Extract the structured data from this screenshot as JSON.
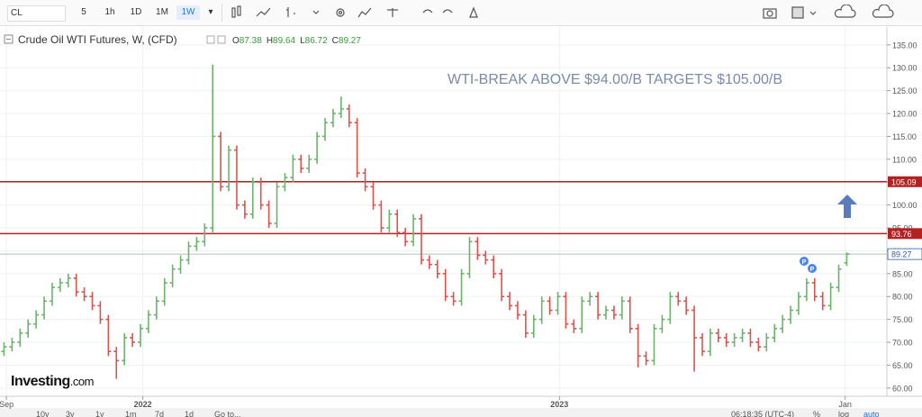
{
  "toolbar": {
    "symbol": "CL",
    "intervals": [
      "5",
      "1h",
      "1D",
      "1M",
      "1W"
    ],
    "active_interval": 4
  },
  "bottom_bar": {
    "ranges": [
      "10y",
      "3y",
      "1y",
      "1m",
      "7d",
      "1d"
    ],
    "goto": "Go to...",
    "clock": "06:18:35 (UTC-4)",
    "options": [
      "%",
      "log",
      "auto"
    ]
  },
  "watermark": {
    "brand": "Investing",
    "suffix": ".com"
  },
  "chart_data": {
    "type": "ohlc",
    "title": "Crude Oil WTI Futures, W, (CFD)",
    "annotation": "WTI-BREAK ABOVE $94.00/B TARGETS $105.00/B",
    "ohlc_labels": [
      "O",
      "H",
      "L",
      "C"
    ],
    "up_color": "#6db36d",
    "down_color": "#d9534f",
    "series": {
      "open": [
        68,
        69,
        70,
        72,
        74,
        76,
        79,
        82,
        83,
        84,
        81,
        80,
        78,
        75,
        68,
        66,
        71,
        70,
        73,
        76,
        79,
        83,
        86,
        88,
        91,
        92,
        95,
        115,
        104,
        112,
        100,
        98,
        105,
        100,
        96,
        104,
        106,
        110,
        108,
        110,
        115,
        118,
        120,
        121,
        118,
        107,
        104,
        100,
        95,
        98,
        94,
        92,
        97,
        88,
        87,
        85,
        80,
        79,
        85,
        92,
        89,
        88,
        85,
        80,
        78,
        76,
        72,
        75,
        79,
        77,
        80,
        74,
        73,
        79,
        80,
        76,
        77,
        76,
        79,
        73,
        67,
        66,
        73,
        75,
        80,
        79,
        77,
        71,
        68,
        72,
        71,
        70,
        71,
        72,
        70,
        69,
        71,
        73,
        75,
        77,
        80,
        83,
        80,
        78,
        82,
        87.38
      ],
      "high": [
        70,
        71,
        73,
        75,
        77,
        80,
        83,
        84,
        85,
        85,
        82,
        81,
        79,
        76,
        69,
        72,
        72,
        74,
        77,
        80,
        84,
        87,
        89,
        92,
        93,
        96,
        130.7,
        116,
        113,
        113,
        101,
        106,
        106,
        101,
        105,
        107,
        111,
        111,
        111,
        116,
        119,
        121,
        123.7,
        122,
        119,
        108,
        105,
        101,
        99,
        99,
        95,
        98,
        98,
        89,
        88,
        86,
        81,
        86,
        93,
        93,
        90,
        89,
        86,
        81,
        79,
        77,
        76,
        80,
        80,
        81,
        81,
        75,
        80,
        81,
        81,
        78,
        78,
        80,
        80,
        74,
        68,
        74,
        76,
        81,
        81,
        80,
        78,
        72,
        73,
        73,
        72,
        72,
        73,
        73,
        71,
        72,
        74,
        76,
        78,
        81,
        84,
        84,
        81,
        83,
        87,
        89.64
      ],
      "low": [
        67,
        68,
        69,
        71,
        73,
        75,
        78,
        81,
        82,
        80,
        79,
        77,
        74,
        67,
        62,
        65,
        69,
        69,
        72,
        75,
        78,
        82,
        85,
        87,
        90,
        91,
        94,
        103,
        103,
        99,
        97,
        97,
        99,
        95,
        95,
        103,
        105,
        107,
        107,
        109,
        114,
        117,
        119,
        117,
        106,
        103,
        99,
        94,
        94,
        93,
        91,
        91,
        87,
        86,
        84,
        79,
        78,
        78,
        84,
        88,
        87,
        84,
        79,
        77,
        75,
        71,
        71,
        74,
        76,
        76,
        73,
        72,
        72,
        78,
        75,
        75,
        75,
        75,
        72,
        64.5,
        65,
        65,
        72,
        74,
        78,
        76,
        63.6,
        67,
        67,
        70,
        69,
        69,
        70,
        69,
        68,
        68,
        70,
        72,
        74,
        76,
        79,
        79,
        77,
        77,
        81,
        86.72
      ],
      "close": [
        69,
        70,
        72,
        74,
        76,
        79,
        82,
        83,
        84,
        81,
        80,
        78,
        75,
        68,
        66,
        71,
        70,
        73,
        76,
        79,
        83,
        86,
        88,
        91,
        92,
        95,
        115,
        104,
        112,
        100,
        98,
        105,
        100,
        96,
        104,
        106,
        110,
        108,
        110,
        115,
        118,
        120,
        121,
        118,
        107,
        104,
        100,
        95,
        98,
        94,
        92,
        97,
        88,
        87,
        85,
        80,
        79,
        85,
        92,
        89,
        88,
        85,
        80,
        78,
        76,
        72,
        75,
        79,
        77,
        80,
        74,
        73,
        79,
        80,
        76,
        77,
        76,
        79,
        73,
        67,
        66,
        73,
        75,
        80,
        79,
        77,
        71,
        68,
        72,
        71,
        70,
        71,
        72,
        70,
        69,
        71,
        73,
        75,
        77,
        80,
        83,
        80,
        78,
        82,
        86,
        89.27
      ]
    },
    "hlines": [
      {
        "value": 105.09,
        "color": "#b22222"
      },
      {
        "value": 93.76,
        "color": "#b22222"
      }
    ],
    "events": [
      "P",
      "P"
    ],
    "ylim": [
      58.2,
      138.9
    ],
    "yticks": [
      {
        "value": 60,
        "label": "60.00"
      },
      {
        "value": 65,
        "label": "65.00"
      },
      {
        "value": 70,
        "label": "70.00"
      },
      {
        "value": 75,
        "label": "75.00"
      },
      {
        "value": 80,
        "label": "80.00"
      },
      {
        "value": 85,
        "label": "85.00"
      },
      {
        "value": 90,
        "label": "90.00"
      },
      {
        "value": 95,
        "label": "95.00"
      },
      {
        "value": 100,
        "label": "100.00"
      },
      {
        "value": 105,
        "label": "105.00"
      },
      {
        "value": 110,
        "label": "110.00"
      },
      {
        "value": 115,
        "label": "115.00"
      },
      {
        "value": 120,
        "label": "120.00"
      },
      {
        "value": 125,
        "label": "125.00"
      },
      {
        "value": 130,
        "label": "130.00"
      },
      {
        "value": 135,
        "label": "135.00"
      }
    ],
    "xlim": [
      -0.5,
      110
    ],
    "xticks": [
      {
        "value": 0.3,
        "label": "Sep"
      },
      {
        "value": 17.3,
        "label": "2022"
      },
      {
        "value": 69.2,
        "label": "2023"
      },
      {
        "value": 104.8,
        "label": "Jan"
      }
    ],
    "grid": true
  }
}
